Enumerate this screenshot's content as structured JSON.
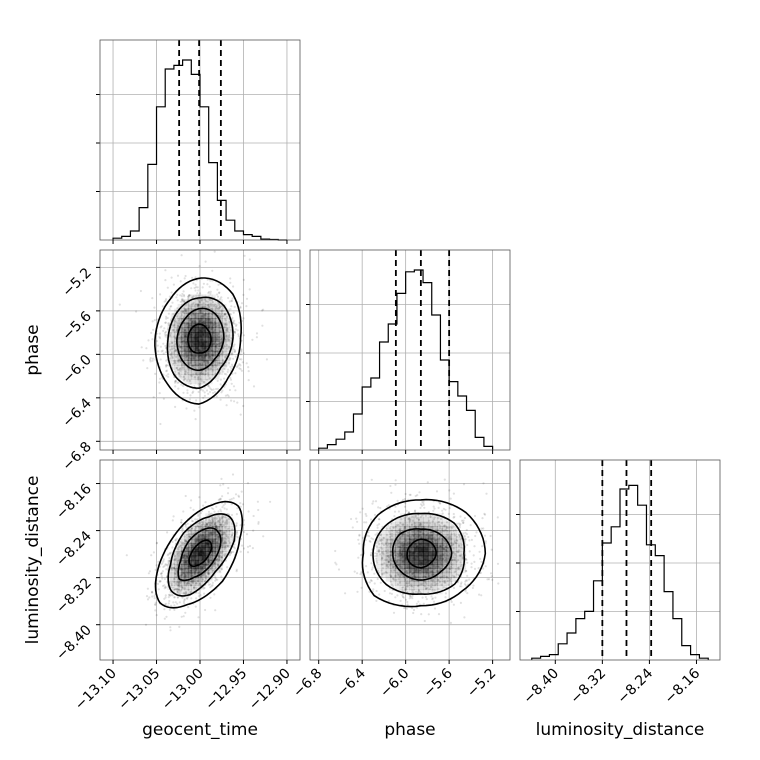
{
  "chart_data": {
    "type": "corner",
    "grid": true,
    "parameters": [
      {
        "name": "geocent_time",
        "label": "geocent_time",
        "range": [
          -13.115,
          -12.885
        ],
        "ticks": [
          -13.1,
          -13.05,
          -13.0,
          -12.95,
          -12.9
        ],
        "tick_labels": [
          "−13.10",
          "−13.05",
          "−13.00",
          "−12.95",
          "−12.90"
        ],
        "quantiles": [
          -13.024,
          -13.001,
          -12.976
        ],
        "mean": -13.0,
        "sigma": 0.022,
        "histogram": {
          "bin_edges": [
            -13.1,
            -13.09,
            -13.08,
            -13.07,
            -13.06,
            -13.05,
            -13.04,
            -13.03,
            -13.02,
            -13.01,
            -13.0,
            -12.99,
            -12.98,
            -12.97,
            -12.96,
            -12.95,
            -12.94,
            -12.93,
            -12.92,
            -12.91,
            -12.9
          ],
          "counts": [
            0.01,
            0.02,
            0.05,
            0.18,
            0.42,
            0.74,
            0.95,
            0.97,
            1.0,
            0.92,
            0.74,
            0.43,
            0.22,
            0.11,
            0.05,
            0.03,
            0.02,
            0.005,
            0.003,
            0.0
          ]
        }
      },
      {
        "name": "phase",
        "label": "phase",
        "range": [
          -6.88,
          -5.04
        ],
        "ticks": [
          -6.8,
          -6.4,
          -6.0,
          -5.6,
          -5.2
        ],
        "tick_labels": [
          "−6.8",
          "−6.4",
          "−6.0",
          "−5.6",
          "−5.2"
        ],
        "quantiles": [
          -6.09,
          -5.86,
          -5.6
        ],
        "mean": -5.86,
        "sigma": 0.24,
        "histogram": {
          "bin_edges": [
            -6.8,
            -6.72,
            -6.64,
            -6.56,
            -6.48,
            -6.4,
            -6.32,
            -6.24,
            -6.16,
            -6.08,
            -6.0,
            -5.92,
            -5.84,
            -5.76,
            -5.68,
            -5.6,
            -5.52,
            -5.44,
            -5.36,
            -5.28,
            -5.2
          ],
          "counts": [
            0.01,
            0.03,
            0.06,
            0.1,
            0.2,
            0.35,
            0.4,
            0.6,
            0.7,
            0.87,
            0.99,
            1.0,
            0.93,
            0.75,
            0.5,
            0.38,
            0.3,
            0.22,
            0.07,
            0.02
          ]
        }
      },
      {
        "name": "luminosity_distance",
        "label": "luminosity_distance",
        "range": [
          -8.46,
          -8.12
        ],
        "ticks": [
          -8.4,
          -8.32,
          -8.24,
          -8.16
        ],
        "tick_labels": [
          "−8.40",
          "−8.32",
          "−8.24",
          "−8.16"
        ],
        "quantiles": [
          -8.32,
          -8.279,
          -8.237
        ],
        "mean": -8.279,
        "sigma": 0.04,
        "histogram": {
          "bin_edges": [
            -8.44,
            -8.425,
            -8.41,
            -8.395,
            -8.38,
            -8.365,
            -8.35,
            -8.335,
            -8.32,
            -8.305,
            -8.29,
            -8.275,
            -8.26,
            -8.245,
            -8.23,
            -8.215,
            -8.2,
            -8.185,
            -8.17,
            -8.155,
            -8.14
          ],
          "counts": [
            0.01,
            0.02,
            0.03,
            0.09,
            0.15,
            0.23,
            0.27,
            0.44,
            0.65,
            0.74,
            0.95,
            0.97,
            0.86,
            0.64,
            0.58,
            0.38,
            0.23,
            0.08,
            0.03,
            0.01
          ]
        }
      }
    ],
    "pairs": [
      {
        "x": "geocent_time",
        "y": "phase",
        "correlation": 0.05
      },
      {
        "x": "geocent_time",
        "y": "luminosity_distance",
        "correlation": 0.55
      },
      {
        "x": "phase",
        "y": "luminosity_distance",
        "correlation": 0.0
      }
    ],
    "contour_levels_sigma": [
      0.5,
      1.0,
      1.5,
      2.0
    ]
  },
  "colors": {
    "line": "#000000",
    "grid": "#b0b0b0",
    "frame": "#555555",
    "density": "#000000"
  }
}
